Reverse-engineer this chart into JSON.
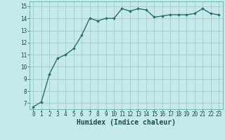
{
  "x": [
    0,
    1,
    2,
    3,
    4,
    5,
    6,
    7,
    8,
    9,
    10,
    11,
    12,
    13,
    14,
    15,
    16,
    17,
    18,
    19,
    20,
    21,
    22,
    23
  ],
  "y": [
    6.7,
    7.1,
    9.4,
    10.7,
    11.0,
    11.5,
    12.6,
    14.0,
    13.8,
    14.0,
    14.0,
    14.8,
    14.6,
    14.8,
    14.7,
    14.1,
    14.2,
    14.3,
    14.3,
    14.3,
    14.4,
    14.8,
    14.4,
    14.3
  ],
  "line_color": "#2d6e6e",
  "marker": "D",
  "marker_size": 1.8,
  "bg_color": "#c5eaea",
  "grid_color": "#aacaca",
  "xlabel": "Humidex (Indice chaleur)",
  "xlabel_fontsize": 7,
  "xlim": [
    -0.5,
    23.5
  ],
  "ylim": [
    6.5,
    15.4
  ],
  "yticks": [
    7,
    8,
    9,
    10,
    11,
    12,
    13,
    14,
    15
  ],
  "xticks": [
    0,
    1,
    2,
    3,
    4,
    5,
    6,
    7,
    8,
    9,
    10,
    11,
    12,
    13,
    14,
    15,
    16,
    17,
    18,
    19,
    20,
    21,
    22,
    23
  ],
  "tick_fontsize": 5.5,
  "line_width": 1.0
}
